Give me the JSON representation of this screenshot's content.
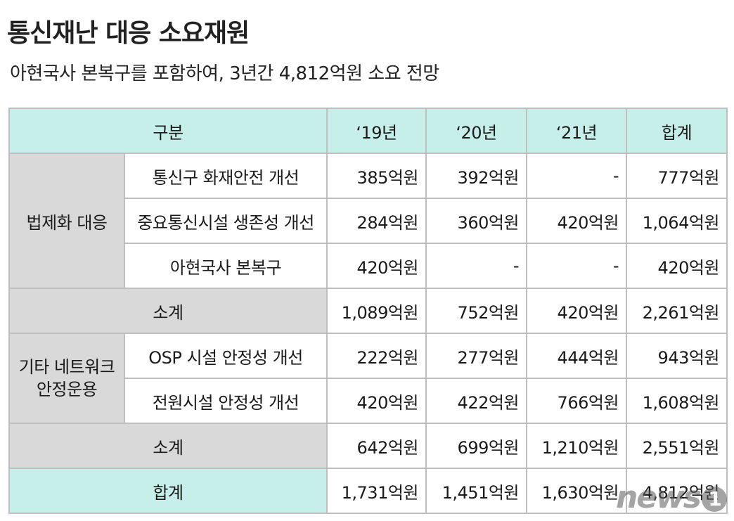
{
  "title": "통신재난 대응 소요재원",
  "subtitle": "아현국사 본복구를 포함하여, 3년간 4,812억원 소요 전망",
  "colors": {
    "header_bg": "#c6efe9",
    "group_bg": "#d9d9d9",
    "border": "#bfbfbf"
  },
  "table": {
    "headers": [
      "구분",
      "‘19년",
      "‘20년",
      "‘21년",
      "합계"
    ],
    "groups": [
      {
        "label": "법제화 대응",
        "rows": [
          {
            "item": "통신구 화재안전 개선",
            "values": [
              "385억원",
              "392억원",
              "-",
              "777억원"
            ]
          },
          {
            "item": "중요통신시설 생존성 개선",
            "values": [
              "284억원",
              "360억원",
              "420억원",
              "1,064억원"
            ]
          },
          {
            "item": "아현국사 본복구",
            "values": [
              "420억원",
              "-",
              "-",
              "420억원"
            ]
          }
        ],
        "subtotal": {
          "label": "소계",
          "values": [
            "1,089억원",
            "752억원",
            "420억원",
            "2,261억원"
          ]
        }
      },
      {
        "label_line1": "기타 네트워크",
        "label_line2": "안정운용",
        "rows": [
          {
            "item": "OSP 시설 안정성 개선",
            "values": [
              "222억원",
              "277억원",
              "444억원",
              "943억원"
            ]
          },
          {
            "item": "전원시설 안정성 개선",
            "values": [
              "420억원",
              "422억원",
              "766억원",
              "1,608억원"
            ]
          }
        ],
        "subtotal": {
          "label": "소계",
          "values": [
            "642억원",
            "699억원",
            "1,210억원",
            "2,551억원"
          ]
        }
      }
    ],
    "total": {
      "label": "합계",
      "values": [
        "1,731억원",
        "1,451억원",
        "1,630억원",
        "4,812억원"
      ]
    }
  },
  "watermark": {
    "text": "news",
    "badge": "1"
  }
}
